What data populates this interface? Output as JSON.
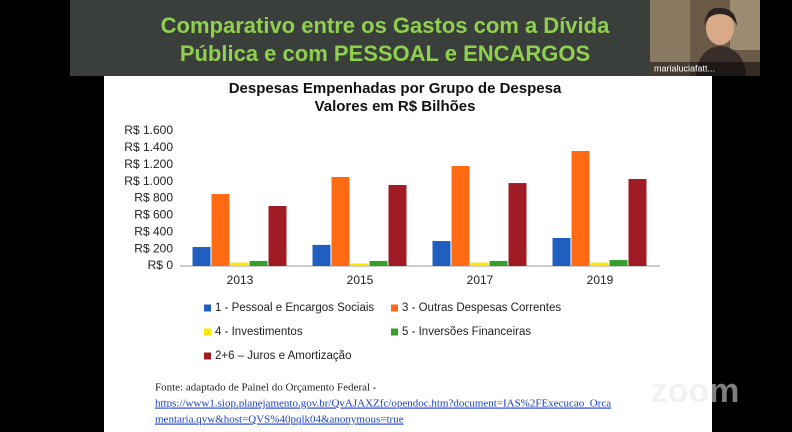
{
  "slide": {
    "title_lines": [
      "Comparativo entre os Gastos com a Dívida",
      "Pública e com PESSOAL e ENCARGOS"
    ],
    "source": "Fonte: adaptado de Painel do Orçamento Federal -",
    "link_lines": [
      "https://www1.siop.planejamento.gov.br/QvAJAXZfc/opendoc.htm?document=IAS%2FExecucao_Orca",
      "mentaria.qvw&host=QVS%40pqlk04&anonymous=true"
    ]
  },
  "participant": {
    "name": "marialuciafatt..."
  },
  "watermark": "zoom",
  "chart_data": {
    "type": "bar",
    "title_lines": [
      "Despesas Empenhadas por Grupo de Despesa",
      "Valores em R$ Bilhões"
    ],
    "categories": [
      "2013",
      "2015",
      "2017",
      "2019"
    ],
    "series": [
      {
        "name": "1 - Pessoal e Encargos Sociais",
        "color": "#1f5fbf",
        "values": [
          225,
          250,
          296,
          332
        ]
      },
      {
        "name": "3 - Outras Despesas Correntes",
        "color": "#ff6a13",
        "values": [
          853,
          1055,
          1185,
          1363
        ]
      },
      {
        "name": "4 - Investimentos",
        "color": "#ffe600",
        "values": [
          40,
          30,
          40,
          40
        ]
      },
      {
        "name": "5 - Inversões Financeiras",
        "color": "#33a02c",
        "values": [
          60,
          60,
          60,
          70
        ]
      },
      {
        "name": "2+6 – Juros e Amortização",
        "color": "#a01c24",
        "values": [
          711,
          960,
          983,
          1031
        ]
      }
    ],
    "ylim": [
      0,
      1600
    ],
    "yticks": [
      {
        "value": 0,
        "label": "R$ 0"
      },
      {
        "value": 200,
        "label": "R$ 200"
      },
      {
        "value": 400,
        "label": "R$ 400"
      },
      {
        "value": 600,
        "label": "R$ 600"
      },
      {
        "value": 800,
        "label": "R$ 800"
      },
      {
        "value": 1000,
        "label": "R$ 1.000"
      },
      {
        "value": 1200,
        "label": "R$ 1.200"
      },
      {
        "value": 1400,
        "label": "R$ 1.400"
      },
      {
        "value": 1600,
        "label": "R$ 1.600"
      }
    ],
    "grid": false
  }
}
